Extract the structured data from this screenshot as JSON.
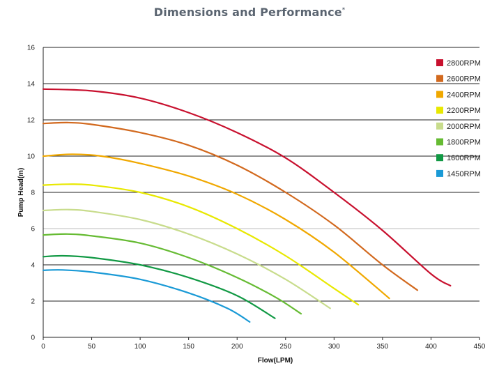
{
  "title": "Dimensions and Performance",
  "title_mark": "*",
  "chart_data": {
    "type": "line",
    "xlabel": "Flow(LPM)",
    "ylabel": "Pump Head(m)",
    "xlim": [
      0,
      450
    ],
    "ylim": [
      0,
      16
    ],
    "x_ticks": [
      "0",
      "50",
      "100",
      "150",
      "200",
      "250",
      "300",
      "350",
      "400",
      "450"
    ],
    "y_ticks": [
      "0",
      "2",
      "4",
      "6",
      "8",
      "10",
      "12",
      "14",
      "16"
    ],
    "grid": "horizontal",
    "legend_position": "top-right",
    "series": [
      {
        "name": "2800RPM",
        "color": "#c8102e",
        "x": [
          0,
          50,
          100,
          150,
          200,
          250,
          300,
          350,
          400,
          420
        ],
        "y": [
          13.7,
          13.6,
          13.2,
          12.4,
          11.3,
          9.9,
          8.0,
          5.9,
          3.5,
          2.85
        ]
      },
      {
        "name": "2600RPM",
        "color": "#d2691e",
        "x": [
          0,
          25,
          50,
          100,
          150,
          200,
          250,
          300,
          350,
          386
        ],
        "y": [
          11.8,
          11.85,
          11.75,
          11.3,
          10.6,
          9.5,
          8.0,
          6.2,
          4.0,
          2.6
        ]
      },
      {
        "name": "2400RPM",
        "color": "#f0a800",
        "x": [
          0,
          30,
          60,
          100,
          150,
          200,
          250,
          300,
          357
        ],
        "y": [
          10.0,
          10.1,
          10.0,
          9.6,
          8.9,
          7.9,
          6.5,
          4.7,
          2.15
        ]
      },
      {
        "name": "2200RPM",
        "color": "#e8e800",
        "x": [
          0,
          25,
          50,
          100,
          150,
          200,
          250,
          300,
          325
        ],
        "y": [
          8.4,
          8.45,
          8.4,
          8.0,
          7.2,
          6.0,
          4.5,
          2.7,
          1.8
        ]
      },
      {
        "name": "2000RPM",
        "color": "#c8dc8c",
        "x": [
          0,
          25,
          50,
          100,
          150,
          200,
          250,
          296
        ],
        "y": [
          7.0,
          7.05,
          6.95,
          6.5,
          5.7,
          4.6,
          3.2,
          1.6
        ]
      },
      {
        "name": "1800RPM",
        "color": "#66bb33",
        "x": [
          0,
          25,
          50,
          100,
          150,
          200,
          240,
          266
        ],
        "y": [
          5.65,
          5.7,
          5.6,
          5.2,
          4.4,
          3.3,
          2.2,
          1.3
        ]
      },
      {
        "name": "1600RPM",
        "color": "#119944",
        "x": [
          0,
          20,
          50,
          100,
          150,
          200,
          239
        ],
        "y": [
          4.45,
          4.5,
          4.4,
          4.0,
          3.3,
          2.3,
          1.05
        ]
      },
      {
        "name": "1450RPM",
        "color": "#1a9ad6",
        "x": [
          0,
          20,
          50,
          100,
          150,
          190,
          213
        ],
        "y": [
          3.7,
          3.72,
          3.6,
          3.2,
          2.45,
          1.6,
          0.85
        ]
      }
    ]
  }
}
